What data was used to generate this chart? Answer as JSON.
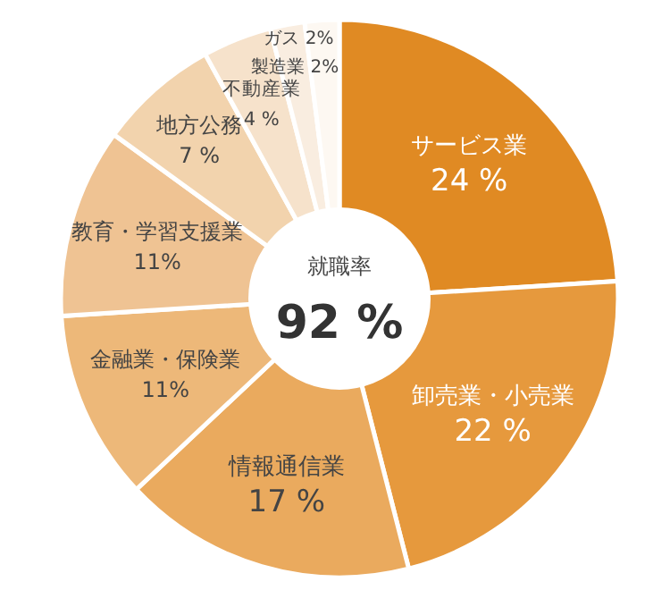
{
  "chart_data": {
    "type": "donut",
    "categories": [
      "サービス業",
      "卸売業・小売業",
      "情報通信業",
      "金融業・保険業",
      "教育・学習支援業",
      "地方公務",
      "不動産業",
      "製造業",
      "ガス"
    ],
    "values": [
      24,
      22,
      17,
      11,
      11,
      7,
      4,
      2,
      2
    ],
    "value_labels": [
      "24 %",
      "22 %",
      "17 %",
      "11%",
      "11%",
      "7 %",
      "4 %",
      "2%",
      "2%"
    ],
    "colors": [
      "#e08a23",
      "#e6993d",
      "#eaaa5e",
      "#edb879",
      "#efc393",
      "#f2d3ad",
      "#f6e2cb",
      "#f9ede0",
      "#fdf8f2"
    ],
    "annotations": [
      "就職率",
      "92 %"
    ]
  }
}
